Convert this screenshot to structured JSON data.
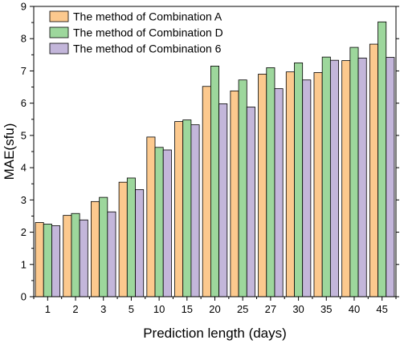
{
  "chart_data": {
    "type": "bar",
    "title": "",
    "xlabel": "Prediction length (days)",
    "ylabel": "MAE(sfu)",
    "categories": [
      "1",
      "2",
      "3",
      "5",
      "10",
      "15",
      "20",
      "25",
      "27",
      "30",
      "35",
      "40",
      "45"
    ],
    "ylim": [
      0,
      9
    ],
    "yticks": [
      0,
      1,
      2,
      3,
      4,
      5,
      6,
      7,
      8,
      9
    ],
    "grid": false,
    "legend_position": "top-left",
    "series": [
      {
        "name": "The method of Combination A",
        "color": "#FCC98E",
        "values": [
          2.3,
          2.52,
          2.95,
          3.55,
          4.95,
          5.43,
          6.52,
          6.38,
          6.9,
          6.97,
          6.95,
          7.32,
          7.83
        ]
      },
      {
        "name": "The method of Combination D",
        "color": "#9DD79C",
        "values": [
          2.25,
          2.58,
          3.08,
          3.68,
          4.63,
          5.48,
          7.15,
          6.72,
          7.1,
          7.25,
          7.43,
          7.73,
          8.52
        ]
      },
      {
        "name": "The method of Combination 6",
        "color": "#C3B6DA",
        "values": [
          2.2,
          2.38,
          2.63,
          3.32,
          4.55,
          5.33,
          5.98,
          5.88,
          6.45,
          6.72,
          7.33,
          7.4,
          7.42
        ]
      }
    ]
  }
}
